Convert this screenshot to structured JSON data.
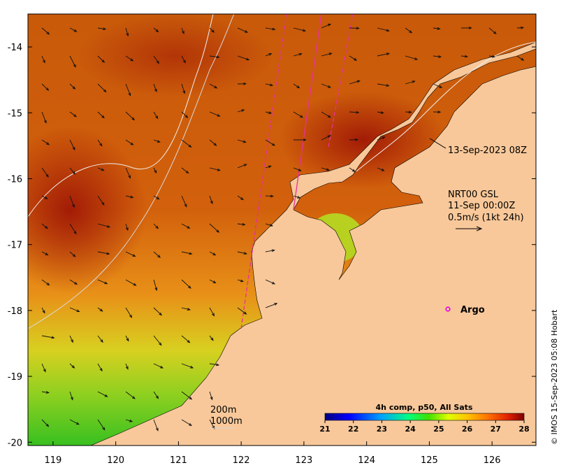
{
  "map": {
    "x_axis": {
      "ticks": [
        "119",
        "120",
        "121",
        "122",
        "123",
        "124",
        "125",
        "126"
      ],
      "range": [
        118.6,
        126.7
      ]
    },
    "y_axis": {
      "ticks": [
        "-14",
        "-15",
        "-16",
        "-17",
        "-18",
        "-19",
        "-20"
      ],
      "range": [
        -20.05,
        -13.5
      ]
    },
    "annotations": {
      "pass_time": "13-Sep-2023 08Z",
      "current_model": "NRT00 GSL",
      "current_time": "11-Sep 00:00Z",
      "current_scale": "0.5m/s (1kt 24h)",
      "argo_label": "Argo",
      "isobath_200": "200m",
      "isobath_1000": "1000m"
    },
    "colorbar": {
      "title": "4h comp, p50, All Sats",
      "ticks": [
        "21",
        "22",
        "23",
        "24",
        "25",
        "26",
        "27",
        "28"
      ],
      "range": [
        21,
        28
      ]
    },
    "credit": "© IMOS 15-Sep-2023 05:08 Hobart",
    "colors": {
      "land": "#f8c89a",
      "sst_warm": "#c23a08",
      "sst_mid": "#e07a10",
      "sst_cool": "#78c820",
      "argo": "#e000e0",
      "track": "#e8309a",
      "isobath": "#e8e8e8"
    }
  }
}
